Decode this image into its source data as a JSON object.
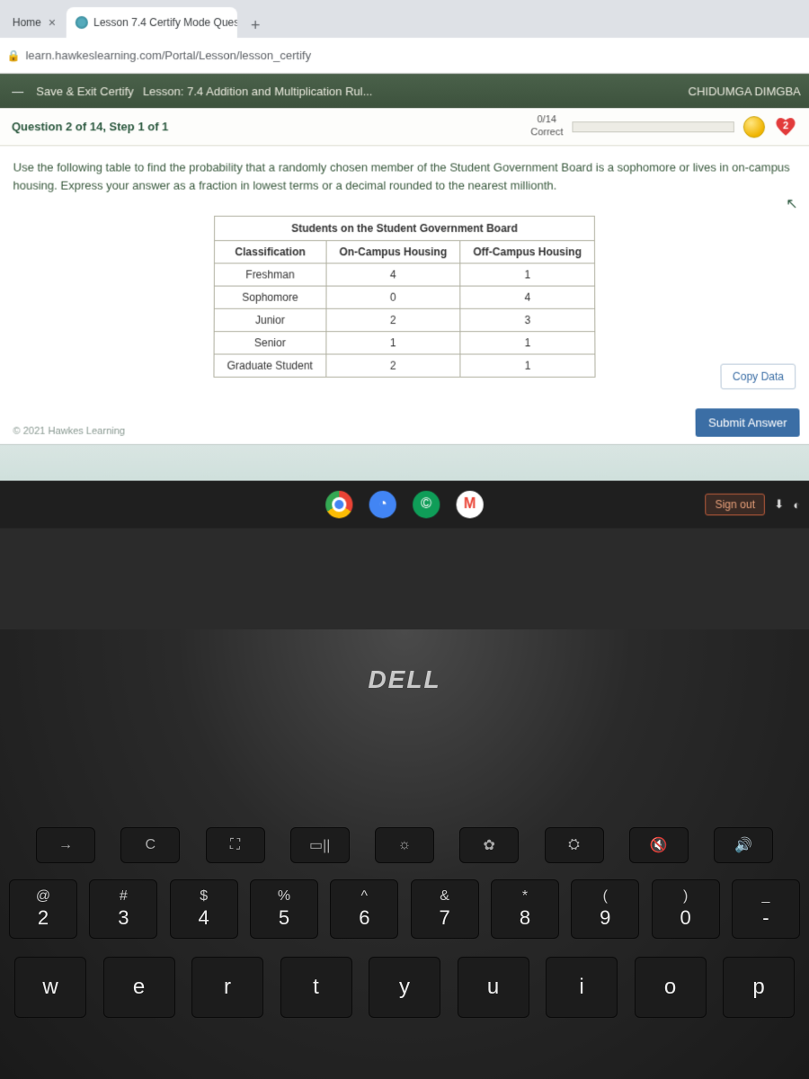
{
  "browser": {
    "tabs": [
      {
        "title": "Home",
        "active": false
      },
      {
        "title": "Lesson 7.4 Certify Mode Questio",
        "active": true
      }
    ],
    "url": "learn.hawkeslearning.com/Portal/Lesson/lesson_certify"
  },
  "header": {
    "save_exit": "Save & Exit Certify",
    "lesson": "Lesson: 7.4 Addition and Multiplication Rul...",
    "user": "CHIDUMGA DIMGBA"
  },
  "subheader": {
    "question_label": "Question 2 of 14, Step 1 of 1",
    "score_top": "0/14",
    "score_bottom": "Correct",
    "hearts": "2"
  },
  "question": {
    "prompt": "Use the following table to find the probability that a randomly chosen member of the Student Government Board is a sophomore or lives in on-campus housing. Express your answer as a fraction in lowest terms or a decimal rounded to the nearest millionth.",
    "table": {
      "caption": "Students on the Student Government Board",
      "columns": [
        "Classification",
        "On-Campus Housing",
        "Off-Campus Housing"
      ],
      "rows": [
        [
          "Freshman",
          "4",
          "1"
        ],
        [
          "Sophomore",
          "0",
          "4"
        ],
        [
          "Junior",
          "2",
          "3"
        ],
        [
          "Senior",
          "1",
          "1"
        ],
        [
          "Graduate Student",
          "2",
          "1"
        ]
      ]
    },
    "copy_data": "Copy Data",
    "submit": "Submit Answer",
    "copyright": "© 2021 Hawkes Learning"
  },
  "shelf": {
    "sign_out": "Sign out"
  },
  "laptop": {
    "brand": "DELL",
    "fn_icons": [
      "→",
      "C",
      "⛶",
      "▭||",
      "☼",
      "✿",
      "⛭",
      "🔇",
      "🔊"
    ],
    "num_keys": [
      {
        "upper": "@",
        "lower": "2"
      },
      {
        "upper": "#",
        "lower": "3"
      },
      {
        "upper": "$",
        "lower": "4"
      },
      {
        "upper": "%",
        "lower": "5"
      },
      {
        "upper": "^",
        "lower": "6"
      },
      {
        "upper": "&",
        "lower": "7"
      },
      {
        "upper": "*",
        "lower": "8"
      },
      {
        "upper": "(",
        "lower": "9"
      },
      {
        "upper": ")",
        "lower": "0"
      },
      {
        "upper": "_",
        "lower": "-"
      }
    ],
    "letter_keys": [
      "w",
      "e",
      "r",
      "t",
      "y",
      "u",
      "i",
      "o",
      "p"
    ]
  },
  "colors": {
    "header_bg": "#3d523d",
    "accent": "#3b6ea5",
    "prompt_text": "#3a5a3e",
    "heart": "#e23b3b"
  }
}
